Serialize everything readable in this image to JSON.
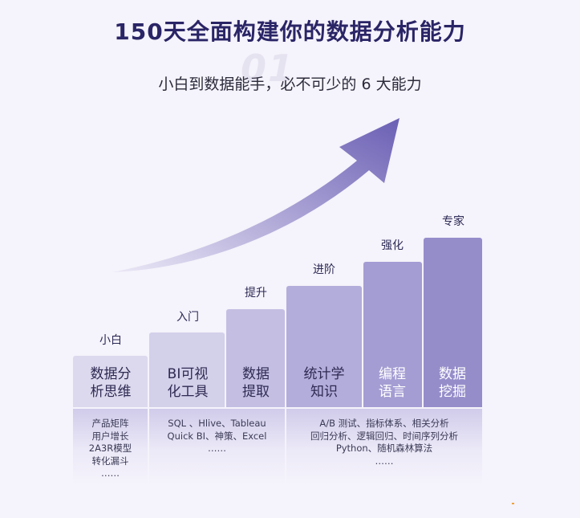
{
  "header": {
    "title": "150天全面构建你的数据分析能力",
    "watermark": "01",
    "subtitle": "小白到数据能手，必不可少的 6 大能力"
  },
  "stages": [
    {
      "label": "小白",
      "bar_text": "数据分\n析思维"
    },
    {
      "label": "入门",
      "bar_text": "BI可视\n化工具"
    },
    {
      "label": "提升",
      "bar_text": "数据\n提取"
    },
    {
      "label": "进阶",
      "bar_text": "统计学\n知识"
    },
    {
      "label": "强化",
      "bar_text": "编程\n语言"
    },
    {
      "label": "专家",
      "bar_text": "数据\n挖掘"
    }
  ],
  "descriptions": [
    "产品矩阵\n用户增长\n2A3R模型\n转化漏斗\n……",
    "SQL 、Hlive、Tableau\nQuick BI、神策、Excel\n……",
    "A/B 测试、指标体系、相关分析\n回归分析、逻辑回归、时间序列分析\nPython、随机森林算法\n……"
  ],
  "colors": {
    "bar_1": "#dcd9ee",
    "bar_2": "#d3d0ea",
    "bar_3": "#c3bee2",
    "bar_4": "#b3addb",
    "bar_5": "#a49dd3",
    "bar_6": "#958dca",
    "arrow_start": "#ebe8f6",
    "arrow_end": "#6a5fb4"
  }
}
